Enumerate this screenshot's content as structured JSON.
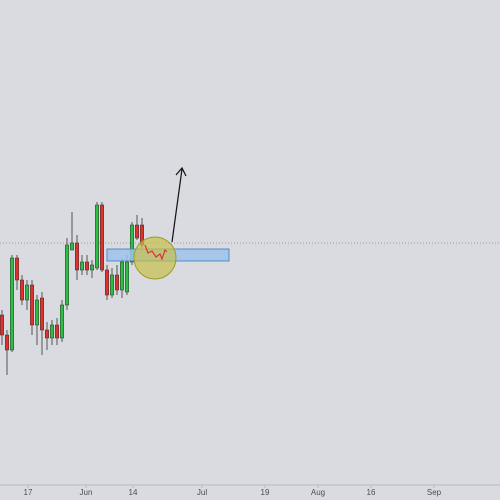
{
  "chart_data": {
    "type": "candlestick",
    "open": [
      185,
      165,
      150,
      242,
      220,
      200,
      215,
      175,
      202,
      170,
      162,
      175,
      162,
      195,
      250,
      257,
      230,
      238,
      230,
      232,
      295,
      230,
      205,
      225,
      210,
      208,
      238,
      275,
      275
    ],
    "high": [
      190,
      170,
      245,
      245,
      225,
      220,
      220,
      205,
      208,
      178,
      180,
      182,
      200,
      262,
      288,
      265,
      245,
      245,
      240,
      298,
      298,
      235,
      232,
      235,
      242,
      245,
      278,
      285,
      282
    ],
    "low": [
      155,
      125,
      148,
      210,
      195,
      190,
      165,
      155,
      145,
      150,
      155,
      155,
      158,
      190,
      250,
      220,
      225,
      225,
      222,
      230,
      228,
      200,
      202,
      205,
      202,
      205,
      235,
      260,
      252
    ],
    "close": [
      165,
      150,
      242,
      220,
      200,
      215,
      175,
      200,
      170,
      162,
      175,
      162,
      195,
      255,
      257,
      230,
      238,
      230,
      235,
      295,
      230,
      205,
      225,
      210,
      238,
      238,
      275,
      262,
      255
    ],
    "up_color": "#2ebd45",
    "down_color": "#e0312f",
    "ylim": [
      15,
      500
    ],
    "xlim": [
      -0.4,
      99.6
    ],
    "xticks": [
      {
        "value": 5.2,
        "label": "17"
      },
      {
        "value": 16.8,
        "label": "Jun"
      },
      {
        "value": 26.2,
        "label": "14"
      },
      {
        "value": 40,
        "label": "Jul"
      },
      {
        "value": 52.6,
        "label": "19"
      },
      {
        "value": 63.2,
        "label": "Aug"
      },
      {
        "value": 73.8,
        "label": "16"
      },
      {
        "value": 86.4,
        "label": "Sep"
      }
    ]
  }
}
